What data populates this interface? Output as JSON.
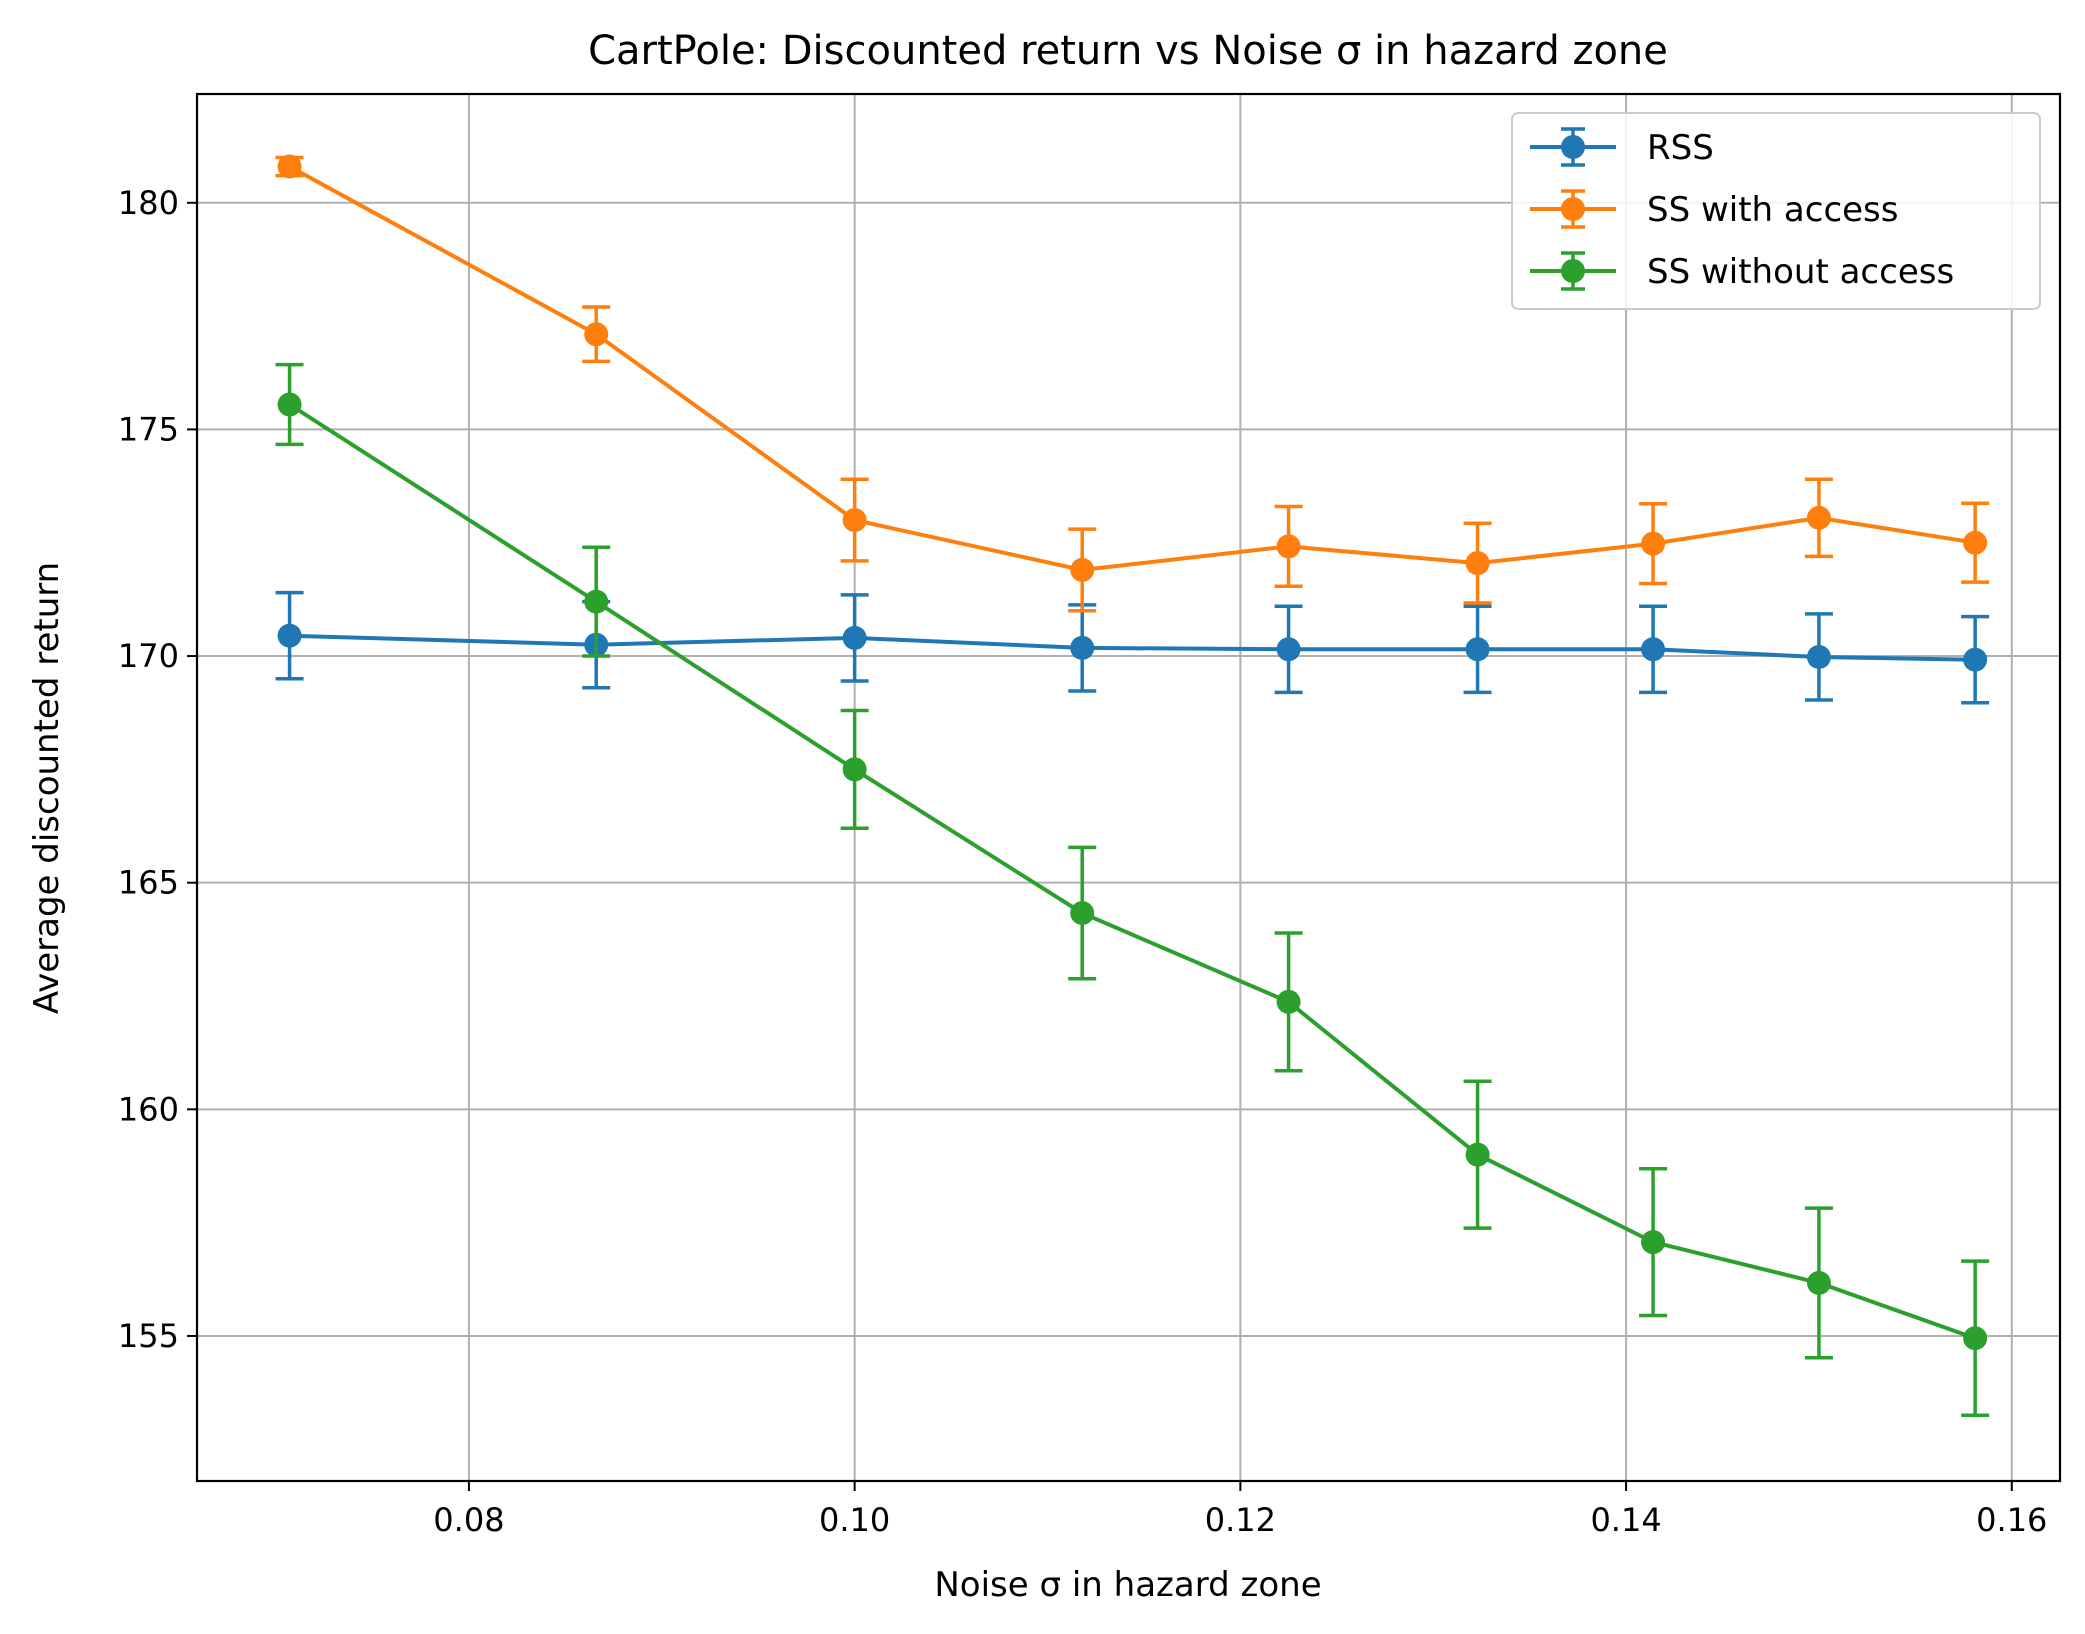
{
  "chart_data": {
    "type": "line",
    "title": "CartPole: Discounted return vs Noise σ in hazard zone",
    "xlabel": "Noise σ in hazard zone",
    "ylabel": "Average discounted return",
    "xlim": [
      0.0659,
      0.1625
    ],
    "ylim": [
      151.8,
      182.4
    ],
    "x_ticks": [
      0.08,
      0.1,
      0.12,
      0.14,
      0.16
    ],
    "x_tick_labels": [
      "0.08",
      "0.10",
      "0.12",
      "0.14",
      "0.16"
    ],
    "y_ticks": [
      155,
      160,
      165,
      170,
      175,
      180
    ],
    "y_tick_labels": [
      "155",
      "160",
      "165",
      "170",
      "175",
      "180"
    ],
    "grid": true,
    "legend_position": "top-right",
    "x": [
      0.0707,
      0.0866,
      0.1,
      0.1118,
      0.1225,
      0.1323,
      0.1414,
      0.15,
      0.1581
    ],
    "series": [
      {
        "name": "RSS",
        "color": "#1f77b4",
        "values": [
          170.45,
          170.25,
          170.4,
          170.18,
          170.15,
          170.15,
          170.15,
          169.98,
          169.92
        ],
        "errors": [
          0.95,
          0.95,
          0.95,
          0.95,
          0.95,
          0.95,
          0.95,
          0.95,
          0.95
        ]
      },
      {
        "name": "SS with access",
        "color": "#ff7f0e",
        "values": [
          180.8,
          177.1,
          173.0,
          171.9,
          172.42,
          172.05,
          172.48,
          173.05,
          172.5
        ],
        "errors": [
          0.2,
          0.6,
          0.9,
          0.9,
          0.88,
          0.88,
          0.88,
          0.85,
          0.87
        ]
      },
      {
        "name": "SS without access",
        "color": "#2ca02c",
        "values": [
          175.55,
          171.2,
          167.5,
          164.33,
          162.37,
          159.0,
          157.07,
          156.17,
          154.95
        ],
        "errors": [
          0.88,
          1.2,
          1.3,
          1.45,
          1.52,
          1.62,
          1.62,
          1.65,
          1.7
        ]
      }
    ]
  }
}
